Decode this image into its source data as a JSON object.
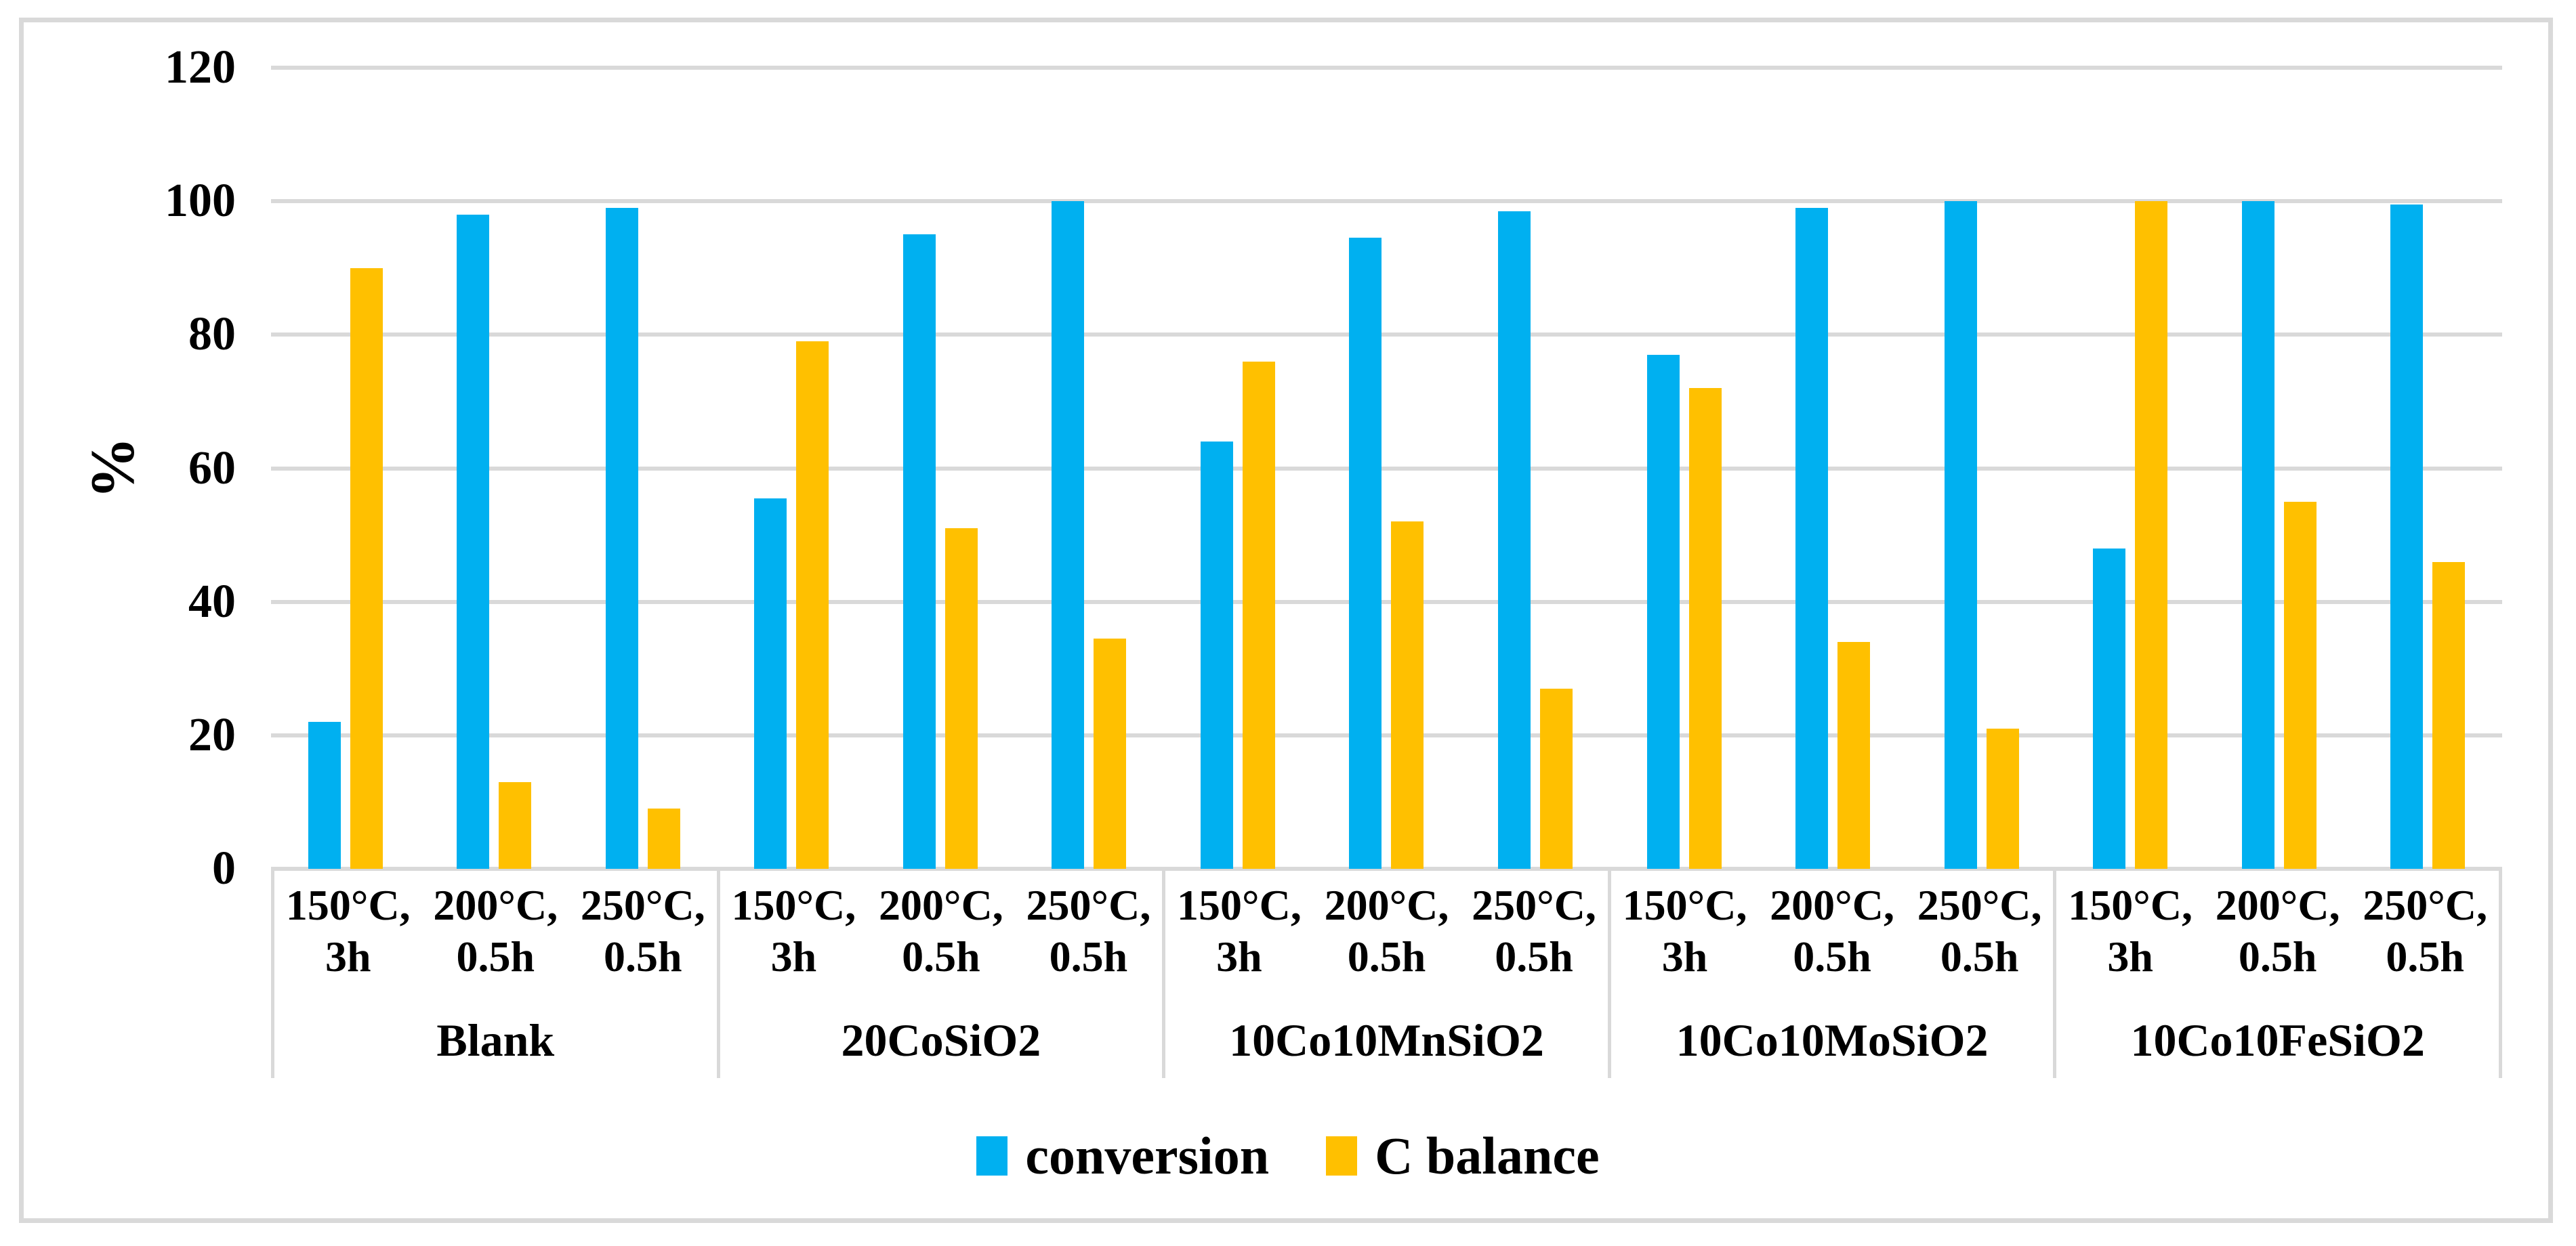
{
  "figure": {
    "background": "#ffffff",
    "border_color": "#d9d9d9",
    "gridline_color": "#d9d9d9"
  },
  "chart_data": {
    "type": "bar",
    "title": "",
    "xlabel": "",
    "ylabel": "%",
    "ylim": [
      0,
      120
    ],
    "yticks": [
      0,
      20,
      40,
      60,
      80,
      100,
      120
    ],
    "grid": true,
    "legend_position": "bottom",
    "categories": [
      "Blank",
      "20CoSiO2",
      "10Co10MnSiO2",
      "10Co10MoSiO2",
      "10Co10FeSiO2"
    ],
    "condition_labels": [
      {
        "line1": "150°C,",
        "line2": "3h"
      },
      {
        "line1": "200°C,",
        "line2": "0.5h"
      },
      {
        "line1": "250°C,",
        "line2": "0.5h"
      }
    ],
    "series": [
      {
        "name": "conversion",
        "color": "#00B0F0",
        "values": [
          [
            22,
            98,
            99
          ],
          [
            55.5,
            95,
            100
          ],
          [
            64,
            94.5,
            98.5
          ],
          [
            77,
            99,
            100
          ],
          [
            48,
            100,
            99.5
          ]
        ]
      },
      {
        "name": "C balance",
        "color": "#FFC000",
        "values": [
          [
            90,
            13,
            9
          ],
          [
            79,
            51,
            34.5
          ],
          [
            76,
            52,
            27
          ],
          [
            72,
            34,
            21
          ],
          [
            100,
            55,
            46
          ]
        ]
      }
    ]
  },
  "legend": {
    "items": [
      {
        "label": "conversion",
        "color": "#00B0F0"
      },
      {
        "label": "C balance",
        "color": "#FFC000"
      }
    ]
  }
}
